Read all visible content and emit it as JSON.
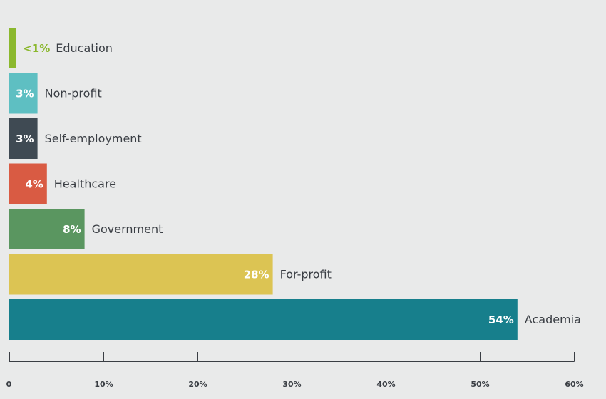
{
  "chart_data": {
    "type": "bar",
    "orientation": "horizontal",
    "title": "",
    "xlabel": "",
    "ylabel": "",
    "xlim": [
      0,
      60
    ],
    "grid": false,
    "legend": "none",
    "categories": [
      "Education",
      "Non-profit",
      "Self-employment",
      "Healthcare",
      "Government",
      "For-profit",
      "Academia"
    ],
    "values": [
      0.7,
      3,
      3,
      4,
      8,
      28,
      54
    ],
    "value_labels": [
      "<1%",
      "3%",
      "3%",
      "4%",
      "8%",
      "28%",
      "54%"
    ],
    "colors": [
      "#8bb82e",
      "#5ebfc2",
      "#3f4a53",
      "#d95b43",
      "#5a9660",
      "#dcc453",
      "#177f8c"
    ],
    "value_label_colors": [
      "#8bb82e",
      "#ffffff",
      "#ffffff",
      "#ffffff",
      "#ffffff",
      "#ffffff",
      "#ffffff"
    ],
    "value_label_position": [
      "outside",
      "inside",
      "inside",
      "inside",
      "inside",
      "inside",
      "inside"
    ],
    "x_ticks": [
      0,
      10,
      20,
      30,
      40,
      50,
      60
    ],
    "x_tick_labels": [
      "0",
      "10%",
      "20%",
      "30%",
      "40%",
      "50%",
      "60%"
    ]
  }
}
